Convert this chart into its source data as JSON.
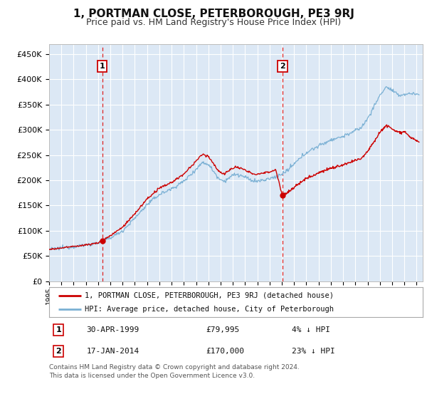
{
  "title": "1, PORTMAN CLOSE, PETERBOROUGH, PE3 9RJ",
  "subtitle": "Price paid vs. HM Land Registry's House Price Index (HPI)",
  "bg_color": "#dce8f5",
  "fig_color": "#ffffff",
  "grid_color": "#ffffff",
  "ylim": [
    0,
    470000
  ],
  "xlim_start": 1995.0,
  "xlim_end": 2025.5,
  "ylabel_ticks": [
    0,
    50000,
    100000,
    150000,
    200000,
    250000,
    300000,
    350000,
    400000,
    450000
  ],
  "ytick_labels": [
    "£0",
    "£50K",
    "£100K",
    "£150K",
    "£200K",
    "£250K",
    "£300K",
    "£350K",
    "£400K",
    "£450K"
  ],
  "sale1_date": 1999.33,
  "sale1_price": 79995,
  "sale2_date": 2014.05,
  "sale2_price": 170000,
  "legend_line1": "1, PORTMAN CLOSE, PETERBOROUGH, PE3 9RJ (detached house)",
  "legend_line2": "HPI: Average price, detached house, City of Peterborough",
  "table_row1": [
    "1",
    "30-APR-1999",
    "£79,995",
    "4% ↓ HPI"
  ],
  "table_row2": [
    "2",
    "17-JAN-2014",
    "£170,000",
    "23% ↓ HPI"
  ],
  "footer": "Contains HM Land Registry data © Crown copyright and database right 2024.\nThis data is licensed under the Open Government Licence v3.0.",
  "red_color": "#cc0000",
  "blue_color": "#7ab0d4",
  "vline_color": "#dd2222",
  "hpi_anchors": [
    [
      1995.0,
      63000
    ],
    [
      1996.0,
      66000
    ],
    [
      1997.0,
      69000
    ],
    [
      1998.0,
      72000
    ],
    [
      1999.0,
      76000
    ],
    [
      2000.0,
      86000
    ],
    [
      2001.0,
      100000
    ],
    [
      2002.0,
      125000
    ],
    [
      2003.0,
      152000
    ],
    [
      2004.0,
      172000
    ],
    [
      2005.0,
      183000
    ],
    [
      2006.0,
      198000
    ],
    [
      2007.0,
      222000
    ],
    [
      2007.5,
      235000
    ],
    [
      2008.0,
      232000
    ],
    [
      2008.8,
      205000
    ],
    [
      2009.3,
      198000
    ],
    [
      2009.8,
      207000
    ],
    [
      2010.2,
      212000
    ],
    [
      2010.8,
      208000
    ],
    [
      2011.5,
      200000
    ],
    [
      2012.0,
      198000
    ],
    [
      2012.5,
      200000
    ],
    [
      2013.0,
      203000
    ],
    [
      2013.5,
      207000
    ],
    [
      2014.0,
      212000
    ],
    [
      2014.5,
      220000
    ],
    [
      2015.0,
      232000
    ],
    [
      2016.0,
      255000
    ],
    [
      2017.0,
      268000
    ],
    [
      2018.0,
      280000
    ],
    [
      2019.0,
      287000
    ],
    [
      2020.0,
      298000
    ],
    [
      2020.5,
      305000
    ],
    [
      2021.0,
      322000
    ],
    [
      2021.5,
      345000
    ],
    [
      2022.0,
      368000
    ],
    [
      2022.5,
      385000
    ],
    [
      2023.0,
      378000
    ],
    [
      2023.5,
      368000
    ],
    [
      2024.0,
      370000
    ],
    [
      2024.5,
      372000
    ],
    [
      2025.2,
      370000
    ]
  ],
  "price_anchors_seg1": [
    [
      1995.0,
      63000
    ],
    [
      1996.0,
      66000
    ],
    [
      1997.0,
      69000
    ],
    [
      1998.0,
      72000
    ],
    [
      1999.0,
      76000
    ],
    [
      1999.33,
      79995
    ]
  ],
  "price_anchors_seg2": [
    [
      1999.33,
      79995
    ],
    [
      2000.0,
      90500
    ],
    [
      2001.0,
      107000
    ],
    [
      2002.0,
      134000
    ],
    [
      2003.0,
      163000
    ],
    [
      2004.0,
      184000
    ],
    [
      2005.0,
      196000
    ],
    [
      2006.0,
      212000
    ],
    [
      2007.0,
      238000
    ],
    [
      2007.5,
      251000
    ],
    [
      2008.0,
      248000
    ],
    [
      2008.8,
      219000
    ],
    [
      2009.3,
      212000
    ],
    [
      2009.8,
      221000
    ],
    [
      2010.2,
      227000
    ],
    [
      2010.8,
      222000
    ],
    [
      2011.5,
      214000
    ],
    [
      2012.0,
      212000
    ],
    [
      2012.5,
      214000
    ],
    [
      2013.0,
      217000
    ],
    [
      2013.5,
      221000
    ],
    [
      2014.05,
      170000
    ]
  ],
  "price_anchors_seg3": [
    [
      2014.05,
      170000
    ],
    [
      2014.5,
      176000
    ],
    [
      2015.0,
      186000
    ],
    [
      2016.0,
      204000
    ],
    [
      2017.0,
      215000
    ],
    [
      2018.0,
      224000
    ],
    [
      2019.0,
      230000
    ],
    [
      2020.0,
      239000
    ],
    [
      2020.5,
      244000
    ],
    [
      2021.0,
      258000
    ],
    [
      2021.5,
      276000
    ],
    [
      2022.0,
      295000
    ],
    [
      2022.5,
      309000
    ],
    [
      2023.0,
      302000
    ],
    [
      2023.5,
      295000
    ],
    [
      2024.0,
      297000
    ],
    [
      2024.5,
      285000
    ],
    [
      2025.2,
      275000
    ]
  ]
}
